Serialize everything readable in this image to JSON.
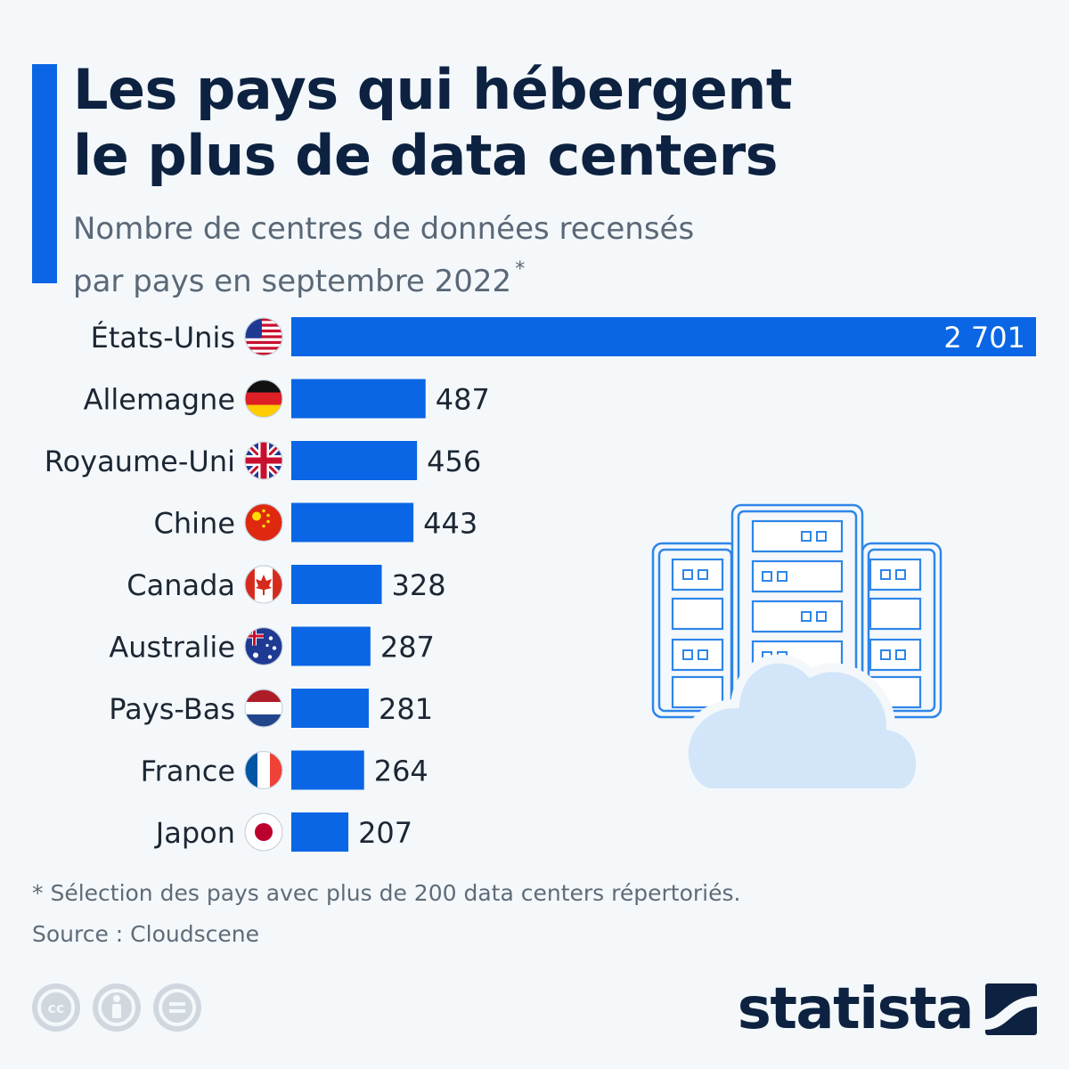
{
  "header": {
    "title_line1": "Les pays qui hébergent",
    "title_line2": "le plus de data centers",
    "subtitle_line1": "Nombre de centres de données recensés",
    "subtitle_line2": "par pays en septembre 2022",
    "subtitle_mark": "*"
  },
  "footer": {
    "footnote": "* Sélection des pays avec plus de 200 data centers répertoriés.",
    "source": "Source : Cloudscene",
    "brand": "statista"
  },
  "colors": {
    "bar": "#0a66e4",
    "title": "#0d2240",
    "text": "#1c2733",
    "illustration": "#2e86e8",
    "cloud": "#d3e6f9"
  },
  "chart_data": {
    "type": "bar",
    "orientation": "horizontal",
    "categories": [
      "États-Unis",
      "Allemagne",
      "Royaume-Uni",
      "Chine",
      "Canada",
      "Australie",
      "Pays-Bas",
      "France",
      "Japon"
    ],
    "values": [
      2701,
      487,
      456,
      443,
      328,
      287,
      281,
      264,
      207
    ],
    "value_labels": [
      "2 701",
      "487",
      "456",
      "443",
      "328",
      "287",
      "281",
      "264",
      "207"
    ],
    "flags": [
      "us-flag-icon",
      "germany-flag-icon",
      "uk-flag-icon",
      "china-flag-icon",
      "canada-flag-icon",
      "australia-flag-icon",
      "netherlands-flag-icon",
      "france-flag-icon",
      "japan-flag-icon"
    ],
    "xlim": [
      0,
      2701
    ],
    "grid": false,
    "legend": "none"
  }
}
